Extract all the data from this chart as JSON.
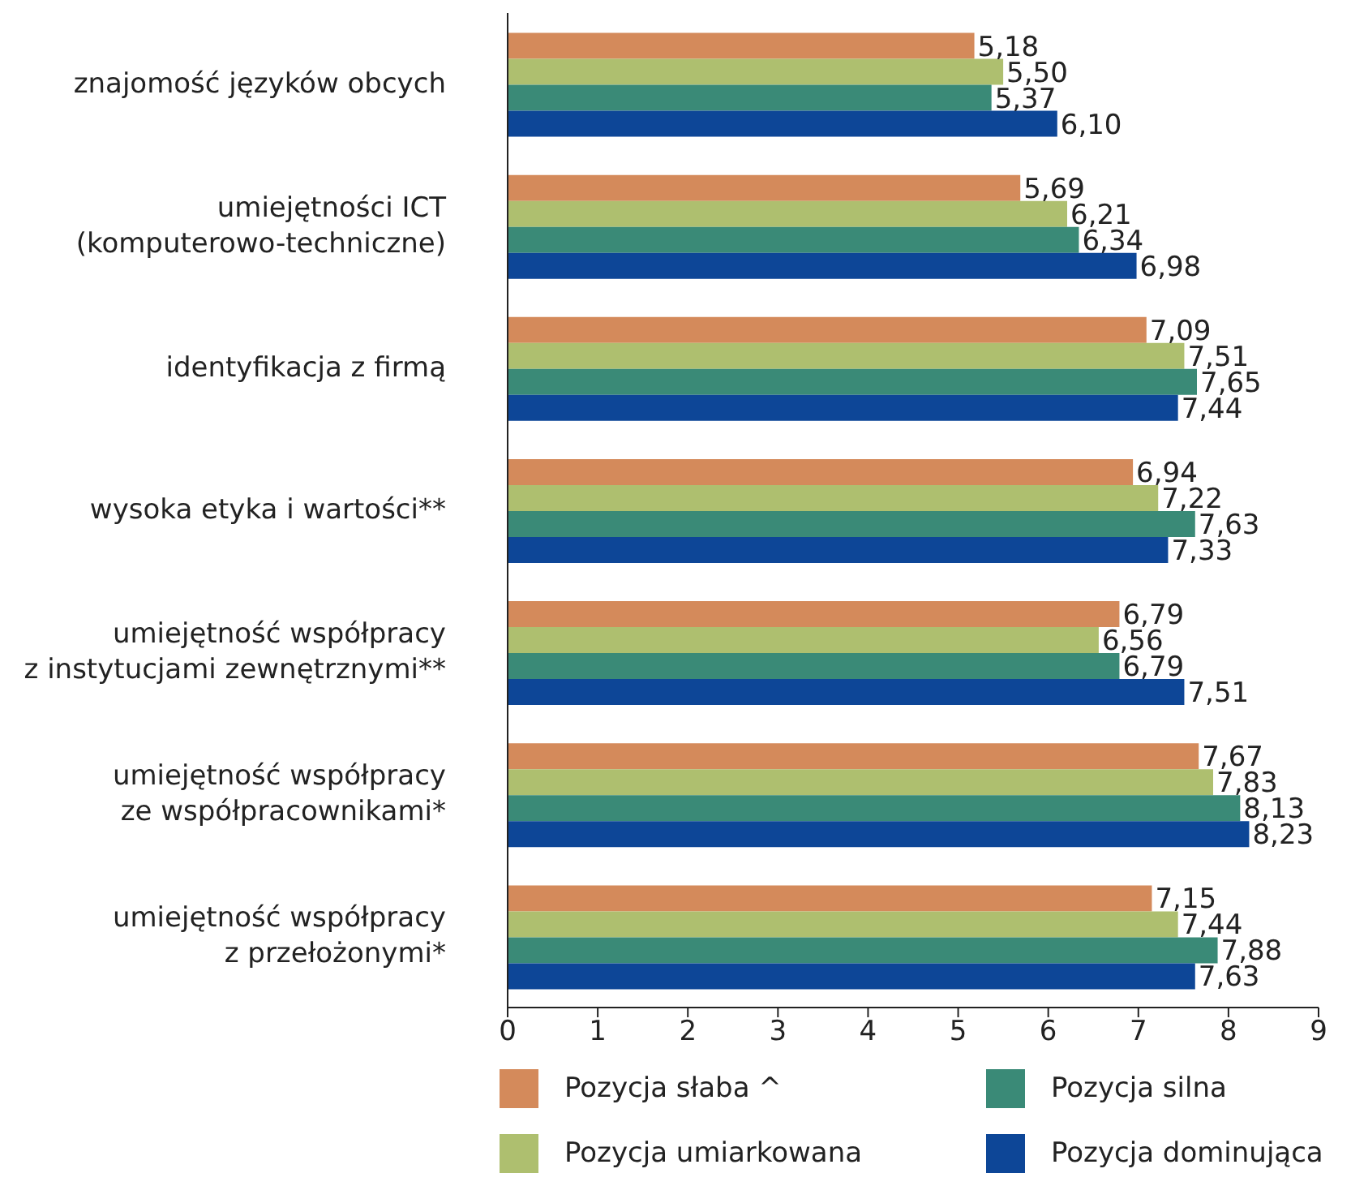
{
  "chart_data": {
    "type": "bar",
    "orientation": "horizontal",
    "categories": [
      "znajomość języków obcych",
      "umiejętności ICT\n(komputerowo-techniczne)",
      "identyfikacja z firmą",
      "wysoka etyka i wartości**",
      "umiejętność współpracy\nz instytucjami zewnętrznymi**",
      "umiejętność współpracy\nze współpracownikami*",
      "umiejętność współpracy\nz przełożonymi*"
    ],
    "series": [
      {
        "name": "Pozycja słaba ^",
        "color": "#d48a5b",
        "values": [
          5.18,
          5.69,
          7.09,
          6.94,
          6.79,
          7.67,
          7.15
        ],
        "value_labels": [
          "5,18",
          "5,69",
          "7,09",
          "6,94",
          "6,79",
          "7,67",
          "7,15"
        ]
      },
      {
        "name": "Pozycja umiarkowana",
        "color": "#aebf6f",
        "values": [
          5.5,
          6.21,
          7.51,
          7.22,
          6.56,
          7.83,
          7.44
        ],
        "value_labels": [
          "5,50",
          "6,21",
          "7,51",
          "7,22",
          "6,56",
          "7,83",
          "7,44"
        ]
      },
      {
        "name": "Pozycja silna",
        "color": "#3a8a77",
        "values": [
          5.37,
          6.34,
          7.65,
          7.63,
          6.79,
          8.13,
          7.88
        ],
        "value_labels": [
          "5,37",
          "6,34",
          "7,65",
          "7,63",
          "6,79",
          "8,13",
          "7,88"
        ]
      },
      {
        "name": "Pozycja dominująca",
        "color": "#0d4697",
        "values": [
          6.1,
          6.98,
          7.44,
          7.33,
          7.51,
          8.23,
          7.63
        ],
        "value_labels": [
          "6,10",
          "6,98",
          "7,44",
          "7,33",
          "7,51",
          "8,23",
          "7,63"
        ]
      }
    ],
    "xlim": [
      0,
      9
    ],
    "xticks": [
      0,
      1,
      2,
      3,
      4,
      5,
      6,
      7,
      8,
      9
    ],
    "grid": false,
    "legend": "bottom"
  }
}
